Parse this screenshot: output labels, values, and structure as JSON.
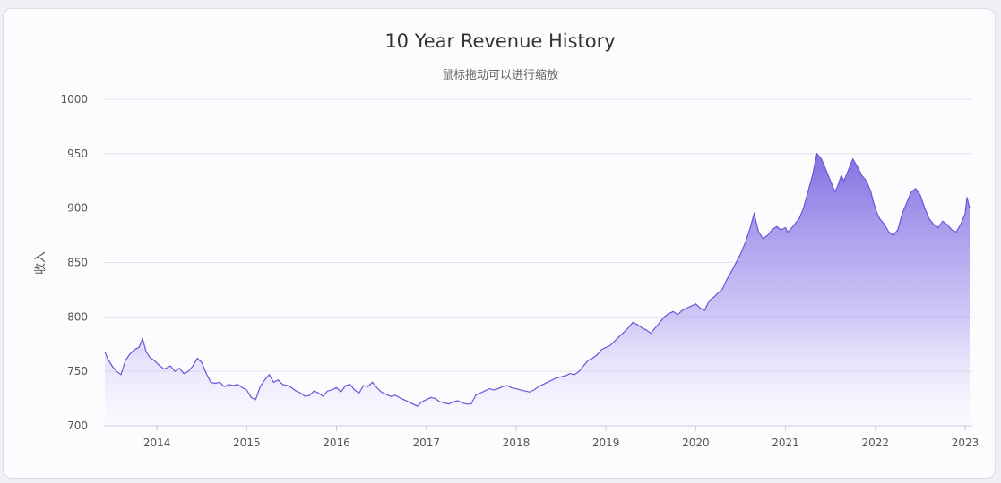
{
  "chart_data": {
    "type": "area",
    "title": "10 Year Revenue History",
    "subtitle": "鼠标拖动可以进行缩放",
    "ylabel": "收入",
    "xlabel": "",
    "ylim": [
      700,
      1000
    ],
    "xlim": [
      2013.41,
      2023.08
    ],
    "yticks": [
      "700",
      "750",
      "800",
      "850",
      "900",
      "950",
      "1000"
    ],
    "xticks": [
      "2014",
      "2015",
      "2016",
      "2017",
      "2018",
      "2019",
      "2020",
      "2021",
      "2022",
      "2023"
    ],
    "grid": true,
    "legend": "none",
    "series": [
      {
        "x": [
          2013.42,
          2013.45,
          2013.5,
          2013.55,
          2013.6,
          2013.65,
          2013.7,
          2013.75,
          2013.8,
          2013.84,
          2013.88,
          2013.92,
          2013.97,
          2014.02,
          2014.08,
          2014.15,
          2014.2,
          2014.25,
          2014.3,
          2014.35,
          2014.4,
          2014.45,
          2014.5,
          2014.55,
          2014.6,
          2014.65,
          2014.7,
          2014.75,
          2014.8,
          2014.85,
          2014.9,
          2014.95,
          2015.0,
          2015.05,
          2015.1,
          2015.15,
          2015.2,
          2015.25,
          2015.3,
          2015.35,
          2015.4,
          2015.45,
          2015.5,
          2015.55,
          2015.6,
          2015.65,
          2015.7,
          2015.75,
          2015.8,
          2015.85,
          2015.9,
          2015.95,
          2016.0,
          2016.05,
          2016.1,
          2016.15,
          2016.2,
          2016.25,
          2016.3,
          2016.35,
          2016.4,
          2016.45,
          2016.5,
          2016.55,
          2016.6,
          2016.65,
          2016.7,
          2016.75,
          2016.8,
          2016.85,
          2016.9,
          2016.95,
          2017.0,
          2017.05,
          2017.1,
          2017.15,
          2017.2,
          2017.25,
          2017.3,
          2017.35,
          2017.4,
          2017.45,
          2017.5,
          2017.55,
          2017.6,
          2017.65,
          2017.7,
          2017.75,
          2017.8,
          2017.85,
          2017.9,
          2017.95,
          2018.0,
          2018.05,
          2018.1,
          2018.15,
          2018.2,
          2018.25,
          2018.3,
          2018.35,
          2018.4,
          2018.45,
          2018.5,
          2018.55,
          2018.6,
          2018.65,
          2018.7,
          2018.75,
          2018.8,
          2018.85,
          2018.9,
          2018.95,
          2019.0,
          2019.05,
          2019.1,
          2019.15,
          2019.2,
          2019.25,
          2019.3,
          2019.35,
          2019.4,
          2019.45,
          2019.5,
          2019.55,
          2019.6,
          2019.65,
          2019.7,
          2019.75,
          2019.8,
          2019.85,
          2019.9,
          2019.95,
          2020.0,
          2020.05,
          2020.1,
          2020.15,
          2020.2,
          2020.25,
          2020.3,
          2020.35,
          2020.4,
          2020.45,
          2020.5,
          2020.55,
          2020.6,
          2020.65,
          2020.7,
          2020.75,
          2020.8,
          2020.85,
          2020.9,
          2020.95,
          2021.0,
          2021.02,
          2021.05,
          2021.1,
          2021.15,
          2021.2,
          2021.25,
          2021.3,
          2021.35,
          2021.4,
          2021.45,
          2021.5,
          2021.55,
          2021.58,
          2021.62,
          2021.65,
          2021.7,
          2021.75,
          2021.8,
          2021.85,
          2021.9,
          2021.95,
          2021.98,
          2022.02,
          2022.05,
          2022.1,
          2022.15,
          2022.2,
          2022.25,
          2022.3,
          2022.35,
          2022.4,
          2022.45,
          2022.5,
          2022.55,
          2022.6,
          2022.65,
          2022.7,
          2022.75,
          2022.8,
          2022.85,
          2022.9,
          2022.95,
          2023.0,
          2023.02,
          2023.05
        ],
        "values": [
          768,
          762,
          755,
          750,
          747,
          760,
          766,
          770,
          772,
          780,
          768,
          763,
          760,
          756,
          752,
          755,
          750,
          753,
          748,
          750,
          755,
          762,
          758,
          748,
          740,
          739,
          740,
          736,
          738,
          737,
          738,
          735,
          733,
          726,
          724,
          736,
          742,
          747,
          740,
          742,
          738,
          737,
          735,
          732,
          730,
          727,
          728,
          732,
          730,
          727,
          732,
          733,
          735,
          731,
          737,
          738,
          733,
          730,
          737,
          736,
          740,
          735,
          731,
          729,
          727,
          728,
          726,
          724,
          722,
          720,
          718,
          722,
          724,
          726,
          725,
          722,
          721,
          720,
          722,
          723,
          721,
          720,
          720,
          728,
          730,
          732,
          734,
          733,
          734,
          736,
          737,
          735,
          734,
          733,
          732,
          731,
          733,
          736,
          738,
          740,
          742,
          744,
          745,
          746,
          748,
          747,
          750,
          755,
          760,
          762,
          765,
          770,
          772,
          774,
          778,
          782,
          786,
          790,
          795,
          793,
          790,
          788,
          785,
          790,
          795,
          800,
          803,
          805,
          802,
          806,
          808,
          810,
          812,
          808,
          806,
          815,
          818,
          822,
          826,
          835,
          842,
          850,
          858,
          868,
          880,
          895,
          878,
          872,
          875,
          880,
          883,
          880,
          882,
          878,
          880,
          885,
          890,
          900,
          915,
          930,
          950,
          945,
          935,
          925,
          915,
          920,
          930,
          925,
          935,
          945,
          938,
          930,
          925,
          915,
          905,
          895,
          890,
          885,
          878,
          875,
          880,
          895,
          905,
          915,
          918,
          912,
          900,
          890,
          885,
          882,
          888,
          885,
          880,
          878,
          885,
          895,
          910,
          900
        ]
      }
    ]
  }
}
